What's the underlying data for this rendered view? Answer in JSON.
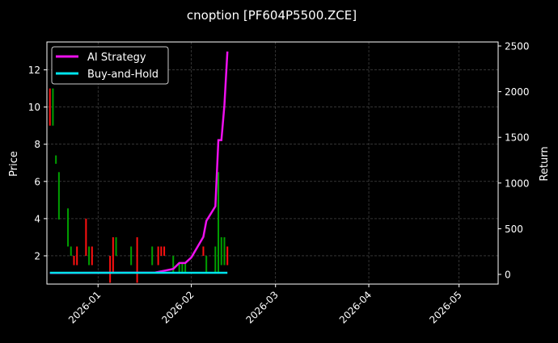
{
  "chart_data": {
    "type": "candlestick+line",
    "title": "cnoption [PF604P5500.ZCE]",
    "ylabel_left": "Price",
    "ylabel_right": "Return",
    "xlim": [
      "2025-12-15",
      "2026-05-14"
    ],
    "ylim_left": [
      0.48,
      13.5
    ],
    "ylim_right": [
      -106,
      2544
    ],
    "x_ticks": [
      "2026-01",
      "2026-02",
      "2026-03",
      "2026-04",
      "2026-05"
    ],
    "y_ticks_left": [
      2,
      4,
      6,
      8,
      10,
      12
    ],
    "y_ticks_right": [
      0,
      500,
      1000,
      1500,
      2000,
      2500
    ],
    "grid": true,
    "legend_position": "top-left",
    "colors": {
      "up": "#00a000",
      "down": "#ff1010",
      "ai": "#ee10ee",
      "bh": "#00e5ee",
      "background": "#000000"
    },
    "candles": [
      {
        "date": "2025-12-16",
        "open": 11.0,
        "close": 9.0,
        "high": 11.0,
        "low": 9.0
      },
      {
        "date": "2025-12-17",
        "open": 9.0,
        "close": 11.0,
        "high": 11.0,
        "low": 9.0
      },
      {
        "date": "2025-12-18",
        "open": 6.95,
        "close": 7.4,
        "high": 7.4,
        "low": 6.95
      },
      {
        "date": "2025-12-19",
        "open": 3.95,
        "close": 6.5,
        "high": 6.5,
        "low": 3.95
      },
      {
        "date": "2025-12-22",
        "open": 2.5,
        "close": 4.55,
        "high": 4.55,
        "low": 2.5
      },
      {
        "date": "2025-12-23",
        "open": 2.0,
        "close": 2.5,
        "high": 2.5,
        "low": 2.0
      },
      {
        "date": "2025-12-24",
        "open": 2.0,
        "close": 1.5,
        "high": 2.0,
        "low": 1.5
      },
      {
        "date": "2025-12-25",
        "open": 2.5,
        "close": 1.5,
        "high": 2.5,
        "low": 1.5
      },
      {
        "date": "2025-12-28",
        "open": 4.0,
        "close": 2.0,
        "high": 4.0,
        "low": 2.0
      },
      {
        "date": "2025-12-29",
        "open": 1.5,
        "close": 2.5,
        "high": 2.5,
        "low": 1.5
      },
      {
        "date": "2025-12-30",
        "open": 2.5,
        "close": 1.5,
        "high": 2.5,
        "low": 1.5
      },
      {
        "date": "2026-01-05",
        "open": 2.0,
        "close": 0.55,
        "high": 2.0,
        "low": 0.55
      },
      {
        "date": "2026-01-06",
        "open": 3.0,
        "close": 1.1,
        "high": 3.0,
        "low": 1.1
      },
      {
        "date": "2026-01-07",
        "open": 2.0,
        "close": 3.0,
        "high": 3.0,
        "low": 2.0
      },
      {
        "date": "2026-01-12",
        "open": 1.5,
        "close": 2.5,
        "high": 2.5,
        "low": 1.5
      },
      {
        "date": "2026-01-14",
        "open": 3.0,
        "close": 0.55,
        "high": 3.0,
        "low": 0.55
      },
      {
        "date": "2026-01-19",
        "open": 1.5,
        "close": 2.5,
        "high": 2.5,
        "low": 1.5
      },
      {
        "date": "2026-01-21",
        "open": 2.5,
        "close": 1.5,
        "high": 2.5,
        "low": 1.5
      },
      {
        "date": "2026-01-22",
        "open": 2.5,
        "close": 2.0,
        "high": 2.5,
        "low": 2.0
      },
      {
        "date": "2026-01-23",
        "open": 2.5,
        "close": 2.0,
        "high": 2.5,
        "low": 2.0
      },
      {
        "date": "2026-01-26",
        "open": 1.1,
        "close": 2.0,
        "high": 2.0,
        "low": 1.1
      },
      {
        "date": "2026-01-28",
        "open": 1.1,
        "close": 1.6,
        "high": 1.6,
        "low": 1.1
      },
      {
        "date": "2026-01-29",
        "open": 1.1,
        "close": 1.6,
        "high": 1.6,
        "low": 1.1
      },
      {
        "date": "2026-01-30",
        "open": 1.1,
        "close": 1.6,
        "high": 1.6,
        "low": 1.1
      },
      {
        "date": "2026-02-05",
        "open": 2.5,
        "close": 2.0,
        "high": 2.5,
        "low": 2.0
      },
      {
        "date": "2026-02-06",
        "open": 1.1,
        "close": 2.0,
        "high": 2.0,
        "low": 1.1
      },
      {
        "date": "2026-02-09",
        "open": 1.1,
        "close": 2.5,
        "high": 2.5,
        "low": 1.1
      },
      {
        "date": "2026-02-10",
        "open": 1.1,
        "close": 6.5,
        "high": 6.5,
        "low": 1.1
      },
      {
        "date": "2026-02-11",
        "open": 1.5,
        "close": 3.0,
        "high": 3.0,
        "low": 1.5
      },
      {
        "date": "2026-02-12",
        "open": 1.5,
        "close": 3.0,
        "high": 3.0,
        "low": 1.5
      },
      {
        "date": "2026-02-13",
        "open": 2.5,
        "close": 1.5,
        "high": 2.5,
        "low": 1.5
      }
    ],
    "series": [
      {
        "name": "AI Strategy",
        "x": [
          "2025-12-16",
          "2026-01-20",
          "2026-01-26",
          "2026-01-28",
          "2026-01-30",
          "2026-02-01",
          "2026-02-05",
          "2026-02-06",
          "2026-02-09",
          "2026-02-10",
          "2026-02-11",
          "2026-02-12",
          "2026-02-13"
        ],
        "values": [
          15,
          20,
          60,
          125,
          125,
          185,
          410,
          585,
          745,
          1470,
          1470,
          1850,
          2440
        ]
      },
      {
        "name": "Buy-and-Hold",
        "x": [
          "2025-12-16",
          "2026-02-13"
        ],
        "values": [
          18,
          18
        ]
      }
    ]
  }
}
